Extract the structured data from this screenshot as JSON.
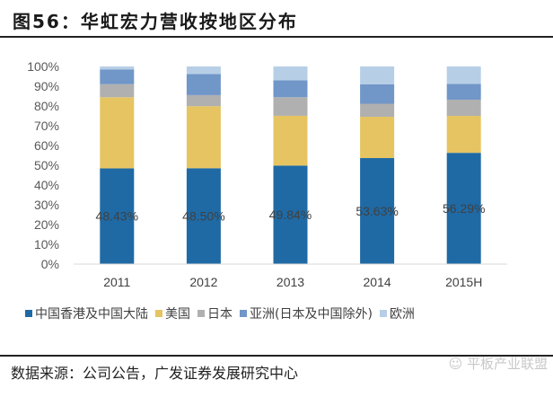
{
  "figure": {
    "title": "图56：华虹宏力营收按地区分布",
    "source": "数据来源：公司公告，广发证券发展研究中心",
    "watermark": "平板产业联盟"
  },
  "chart_data": {
    "type": "bar",
    "stacked": true,
    "title": "华虹宏力营收按地区分布",
    "xlabel": "",
    "ylabel": "",
    "ylim": [
      0,
      100
    ],
    "y_ticks": [
      "0%",
      "10%",
      "20%",
      "30%",
      "40%",
      "50%",
      "60%",
      "70%",
      "80%",
      "90%",
      "100%"
    ],
    "categories": [
      "2011",
      "2012",
      "2013",
      "2014",
      "2015H"
    ],
    "series": [
      {
        "name": "中国香港及中国大陆",
        "color": "#1f6aa5",
        "values": [
          48.43,
          48.5,
          49.84,
          53.63,
          56.29
        ],
        "labels": [
          "48.43%",
          "48.50%",
          "49.84%",
          "53.63%",
          "56.29%"
        ]
      },
      {
        "name": "美国",
        "color": "#e6c462",
        "values": [
          36.0,
          31.4,
          25.2,
          20.9,
          18.7
        ]
      },
      {
        "name": "日本",
        "color": "#b0b0b0",
        "values": [
          6.6,
          5.6,
          9.4,
          6.6,
          8.2
        ]
      },
      {
        "name": "亚洲(日本及中国除外)",
        "color": "#7196c8",
        "values": [
          7.5,
          10.7,
          8.6,
          9.9,
          8.0
        ]
      },
      {
        "name": "欧洲",
        "color": "#b6cfe6",
        "values": [
          1.47,
          3.8,
          6.96,
          8.97,
          8.81
        ]
      }
    ],
    "legend_position": "bottom",
    "grid": false
  }
}
